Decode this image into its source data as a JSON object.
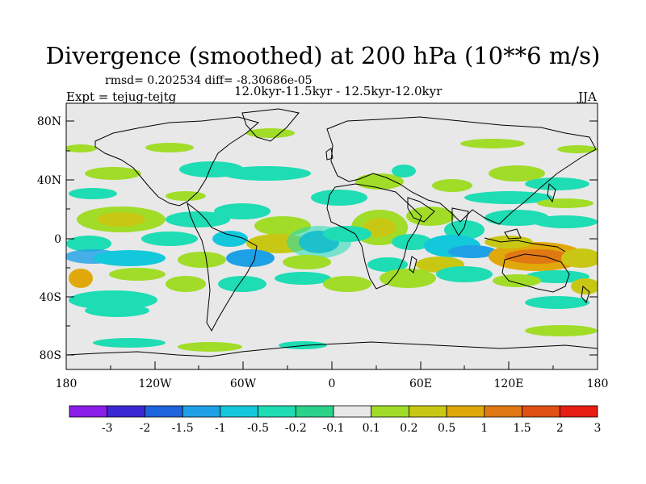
{
  "title": "Divergence (smoothed) at 200 hPa (10**6 m/s)",
  "stats": "rmsd= 0.202534 diff= -8.30686e-05",
  "period": "12.0kyr-11.5kyr - 12.5kyr-12.0kyr",
  "experiment": "Expt = tejug-tejtg",
  "season": "JJA",
  "axes": {
    "lat_labels": [
      "80N",
      "40N",
      "0",
      "40S",
      "80S"
    ],
    "lon_labels": [
      "180",
      "120W",
      "60W",
      "0",
      "60E",
      "120E",
      "180"
    ]
  },
  "colorbar": {
    "labels": [
      "-3",
      "-2",
      "-1.5",
      "-1",
      "-0.5",
      "-0.2",
      "-0.1",
      "0.1",
      "0.2",
      "0.5",
      "1",
      "1.5",
      "2",
      "3"
    ],
    "colors": [
      "#8a1ee8",
      "#3c28d2",
      "#1e64dc",
      "#1ea0e6",
      "#14c8dc",
      "#1edcb4",
      "#2ad28a",
      "#e8e8e8",
      "#a0dc28",
      "#c8c814",
      "#e0a80a",
      "#e07814",
      "#e05014",
      "#e61e14"
    ]
  },
  "colors": {
    "background": "#ffffff",
    "ocean_plot": "#e8e8e8",
    "coast": "#000000"
  }
}
